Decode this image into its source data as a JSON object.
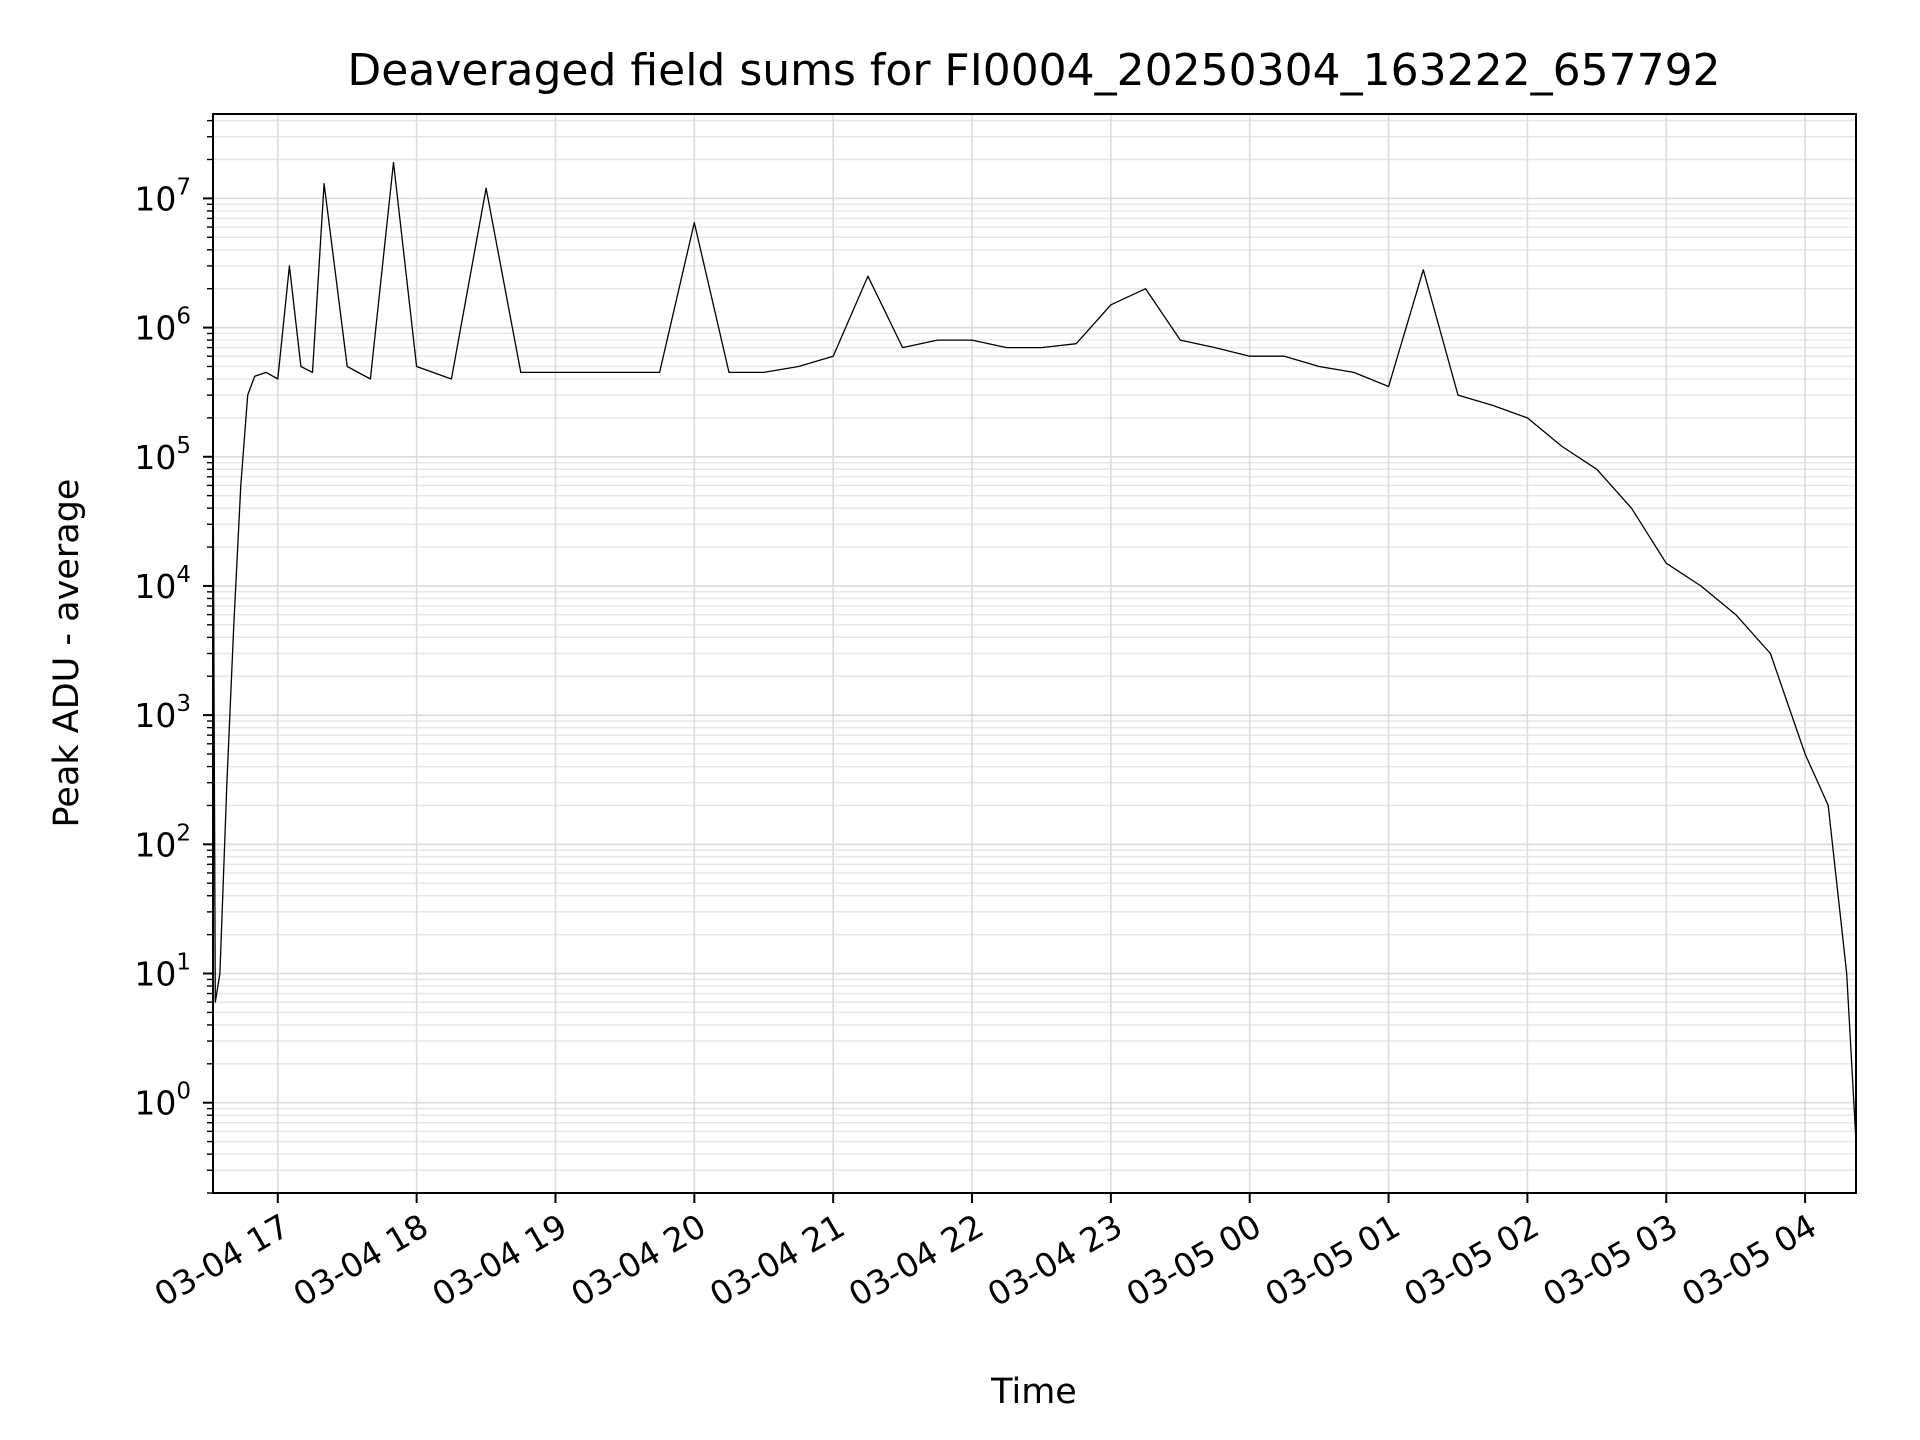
{
  "chart_data": {
    "type": "line",
    "title": "Deaveraged field sums for FI0004_20250304_163222_657792",
    "xlabel": "Time",
    "ylabel": "Peak ADU - average",
    "yscale": "log",
    "ylim": [
      0.2,
      45000000
    ],
    "xlim": [
      "2025-03-04 16:32",
      "2025-03-05 04:22"
    ],
    "grid": true,
    "x_ticks": [
      "03-04 17",
      "03-04 18",
      "03-04 19",
      "03-04 20",
      "03-04 21",
      "03-04 22",
      "03-04 23",
      "03-05 00",
      "03-05 01",
      "03-05 02",
      "03-05 03",
      "03-05 04"
    ],
    "y_ticks": [
      {
        "base": "10",
        "exp": "0"
      },
      {
        "base": "10",
        "exp": "1"
      },
      {
        "base": "10",
        "exp": "2"
      },
      {
        "base": "10",
        "exp": "3"
      },
      {
        "base": "10",
        "exp": "4"
      },
      {
        "base": "10",
        "exp": "5"
      },
      {
        "base": "10",
        "exp": "6"
      },
      {
        "base": "10",
        "exp": "7"
      }
    ],
    "series": [
      {
        "color": "#000000",
        "x": [
          "2025-03-04 16:32",
          "2025-03-04 16:33",
          "2025-03-04 16:35",
          "2025-03-04 16:38",
          "2025-03-04 16:41",
          "2025-03-04 16:44",
          "2025-03-04 16:47",
          "2025-03-04 16:50",
          "2025-03-04 16:55",
          "2025-03-04 17:00",
          "2025-03-04 17:05",
          "2025-03-04 17:10",
          "2025-03-04 17:15",
          "2025-03-04 17:20",
          "2025-03-04 17:30",
          "2025-03-04 17:40",
          "2025-03-04 17:50",
          "2025-03-04 18:00",
          "2025-03-04 18:15",
          "2025-03-04 18:30",
          "2025-03-04 18:45",
          "2025-03-04 19:00",
          "2025-03-04 19:15",
          "2025-03-04 19:30",
          "2025-03-04 19:45",
          "2025-03-04 20:00",
          "2025-03-04 20:15",
          "2025-03-04 20:30",
          "2025-03-04 20:45",
          "2025-03-04 21:00",
          "2025-03-04 21:15",
          "2025-03-04 21:30",
          "2025-03-04 21:45",
          "2025-03-04 22:00",
          "2025-03-04 22:15",
          "2025-03-04 22:30",
          "2025-03-04 22:45",
          "2025-03-04 23:00",
          "2025-03-04 23:15",
          "2025-03-04 23:30",
          "2025-03-04 23:45",
          "2025-03-05 00:00",
          "2025-03-05 00:15",
          "2025-03-05 00:30",
          "2025-03-05 00:45",
          "2025-03-05 01:00",
          "2025-03-05 01:15",
          "2025-03-05 01:30",
          "2025-03-05 01:45",
          "2025-03-05 02:00",
          "2025-03-05 02:15",
          "2025-03-05 02:30",
          "2025-03-05 02:45",
          "2025-03-05 03:00",
          "2025-03-05 03:15",
          "2025-03-05 03:30",
          "2025-03-05 03:45",
          "2025-03-05 04:00",
          "2025-03-05 04:10",
          "2025-03-05 04:18",
          "2025-03-05 04:22"
        ],
        "y": [
          150000,
          6,
          10,
          300,
          5000,
          60000,
          300000,
          420000,
          450000,
          400000,
          3000000,
          500000,
          450000,
          13000000,
          500000,
          400000,
          19000000,
          500000,
          400000,
          12000000,
          450000,
          450000,
          450000,
          450000,
          450000,
          6500000,
          450000,
          450000,
          500000,
          600000,
          2500000,
          700000,
          800000,
          800000,
          700000,
          700000,
          750000,
          1500000,
          2000000,
          800000,
          700000,
          600000,
          600000,
          500000,
          450000,
          350000,
          2800000,
          300000,
          250000,
          200000,
          120000,
          80000,
          40000,
          15000,
          10000,
          6000,
          3000,
          500,
          200,
          10,
          0.5
        ]
      }
    ]
  }
}
